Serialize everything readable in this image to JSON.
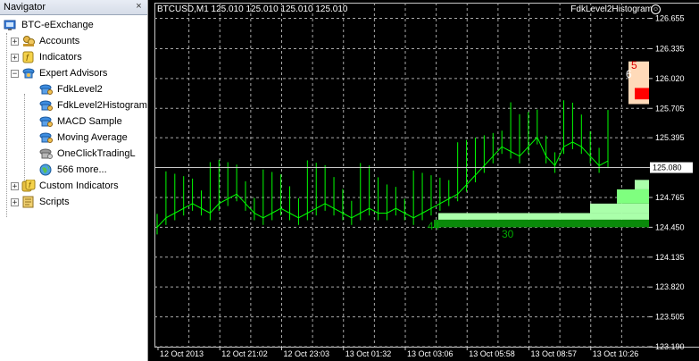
{
  "navigator": {
    "title": "Navigator",
    "close_glyph": "×",
    "root": "BTC-eExchange",
    "items": [
      {
        "label": "Accounts",
        "icon": "accounts-icon"
      },
      {
        "label": "Indicators",
        "icon": "indicators-icon"
      },
      {
        "label": "Expert Advisors",
        "icon": "expert-advisors-icon"
      },
      {
        "label": "FdkLevel2",
        "icon": "expert-icon"
      },
      {
        "label": "FdkLevel2Histogram",
        "icon": "expert-icon"
      },
      {
        "label": "MACD Sample",
        "icon": "expert-icon"
      },
      {
        "label": "Moving Average",
        "icon": "expert-icon"
      },
      {
        "label": "OneClickTradingL",
        "icon": "expert-gray-icon"
      },
      {
        "label": "566 more...",
        "icon": "globe-icon"
      },
      {
        "label": "Custom Indicators",
        "icon": "custom-indicators-icon"
      },
      {
        "label": "Scripts",
        "icon": "scripts-icon"
      }
    ]
  },
  "chart": {
    "title": "BTCUSD,M1  125.010 125.010 125.010 125.010",
    "indicator_name": "FdkLevel2Histogram",
    "indicator_label": "☺",
    "current_price_label": "125.080",
    "annotations": [
      {
        "text": "44",
        "color": "#00aa00"
      },
      {
        "text": "30",
        "color": "#00aa00"
      },
      {
        "text": "5",
        "color": "#dd0000"
      },
      {
        "text": "6",
        "color": "#ffffff"
      }
    ],
    "colors": {
      "background": "#000000",
      "price_line": "#00ff00",
      "grid": "#a8a8a8",
      "bid_volume": "#ff0000",
      "bid_volume_light": "#ffdab9"
    }
  },
  "chart_data": {
    "type": "line",
    "y_ticks": [
      "126.655",
      "126.335",
      "126.020",
      "125.705",
      "125.395",
      "125.080",
      "124.765",
      "124.450",
      "124.135",
      "123.820",
      "123.505",
      "123.190"
    ],
    "x_ticks": [
      "12 Oct 2013",
      "12 Oct 21:02",
      "12 Oct 23:03",
      "13 Oct 01:32",
      "13 Oct 03:06",
      "13 Oct 05:58",
      "13 Oct 08:57",
      "13 Oct 10:26"
    ],
    "ylim": [
      123.19,
      126.82
    ],
    "series": [
      {
        "values": [
          124.45,
          124.55,
          124.6,
          124.65,
          124.7,
          124.65,
          124.6,
          124.7,
          124.75,
          124.8,
          124.7,
          124.6,
          124.55,
          124.6,
          124.65,
          124.6,
          124.55,
          124.6,
          124.65,
          124.7,
          124.65,
          124.6,
          124.55,
          124.6,
          124.65,
          124.6,
          124.6,
          124.65,
          124.6,
          124.55,
          124.6,
          124.65,
          124.7,
          124.75,
          124.8,
          124.9,
          125.0,
          125.1,
          125.2,
          125.3,
          125.25,
          125.2,
          125.3,
          125.4,
          125.2,
          125.1,
          125.3,
          125.35,
          125.3,
          125.2,
          125.1,
          125.15
        ]
      }
    ]
  }
}
